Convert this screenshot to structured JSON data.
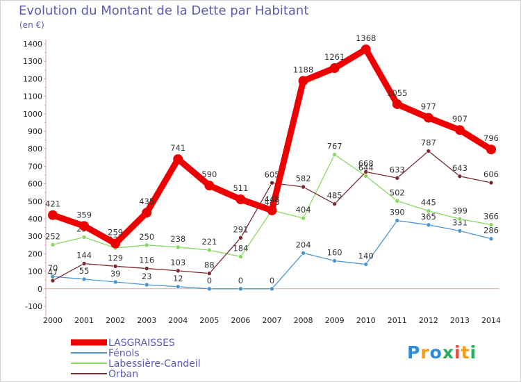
{
  "chart_data": {
    "type": "line",
    "title": "Evolution du Montant de la Dette par Habitant",
    "subtitle": "(en €)",
    "x": [
      "2000",
      "2001",
      "2002",
      "2003",
      "2004",
      "2005",
      "2006",
      "2007",
      "2008",
      "2009",
      "2010",
      "2011",
      "2012",
      "2013",
      "2014"
    ],
    "ylim": [
      -100,
      1400
    ],
    "yticks": [
      -100,
      0,
      100,
      200,
      300,
      400,
      500,
      600,
      700,
      800,
      900,
      1000,
      1100,
      1200,
      1300,
      1400
    ],
    "grid": false,
    "legend_position": "bottom-left",
    "series": [
      {
        "name": "LASGRAISSES",
        "color": "#ee0000",
        "emphasis": true,
        "values": [
          421,
          359,
          259,
          435,
          741,
          590,
          511,
          448,
          1188,
          1261,
          1368,
          1055,
          977,
          907,
          796
        ]
      },
      {
        "name": "Fénols",
        "color": "#4d94cf",
        "values": [
          70,
          55,
          39,
          23,
          12,
          0,
          0,
          0,
          204,
          160,
          140,
          390,
          365,
          331,
          286
        ]
      },
      {
        "name": "Labessière-Candeil",
        "color": "#88d860",
        "values": [
          252,
          295,
          233,
          250,
          238,
          221,
          184,
          448,
          404,
          767,
          644,
          502,
          445,
          399,
          366
        ]
      },
      {
        "name": "Orban",
        "color": "#7a2a30",
        "values": [
          47,
          144,
          129,
          116,
          103,
          88,
          291,
          605,
          582,
          485,
          668,
          633,
          787,
          643,
          606
        ]
      }
    ]
  },
  "logo": {
    "text": "Proxiti",
    "colors": [
      "#2e8bd6",
      "#f39c12",
      "#2e8bd6",
      "#27ae60",
      "#e74c3c",
      "#f39c12",
      "#27ae60"
    ]
  }
}
